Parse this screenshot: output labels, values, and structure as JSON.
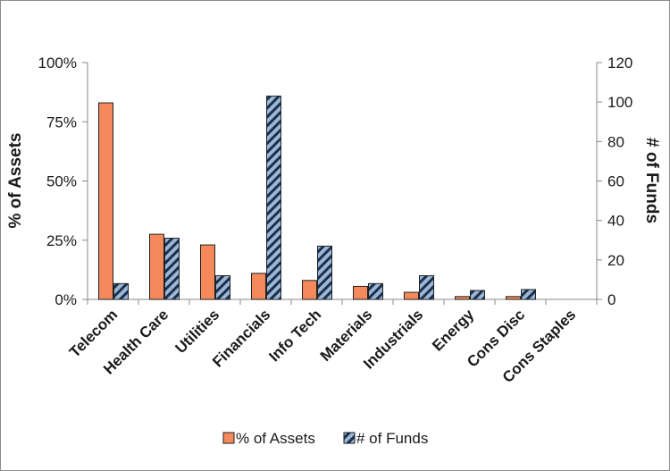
{
  "chart_data": {
    "type": "bar",
    "title": "",
    "xlabel": "",
    "ylabel": "% of Assets",
    "y2label": "# of Funds",
    "ylim": [
      0,
      100
    ],
    "y2lim": [
      0,
      120
    ],
    "yticks": [
      "0%",
      "25%",
      "50%",
      "75%",
      "100%"
    ],
    "y2ticks": [
      "0",
      "20",
      "40",
      "60",
      "80",
      "100",
      "120"
    ],
    "categories": [
      "Telecom",
      "Health Care",
      "Utilities",
      "Financials",
      "Info Tech",
      "Materials",
      "Industrials",
      "Energy",
      "Cons Disc",
      "Cons Staples"
    ],
    "series": [
      {
        "name": "% of Assets",
        "axis": "left",
        "color": "#f4895b",
        "values": [
          83,
          27.5,
          23,
          11,
          8,
          5.5,
          3,
          1.2,
          1.2,
          0
        ]
      },
      {
        "name": "# of Funds",
        "axis": "right",
        "color": "#9bb7d8",
        "pattern": "diagonal-stripes",
        "values": [
          8,
          31,
          12,
          103,
          27,
          8,
          12,
          4.5,
          5,
          0
        ]
      }
    ],
    "legend": "bottom",
    "grid": false
  }
}
